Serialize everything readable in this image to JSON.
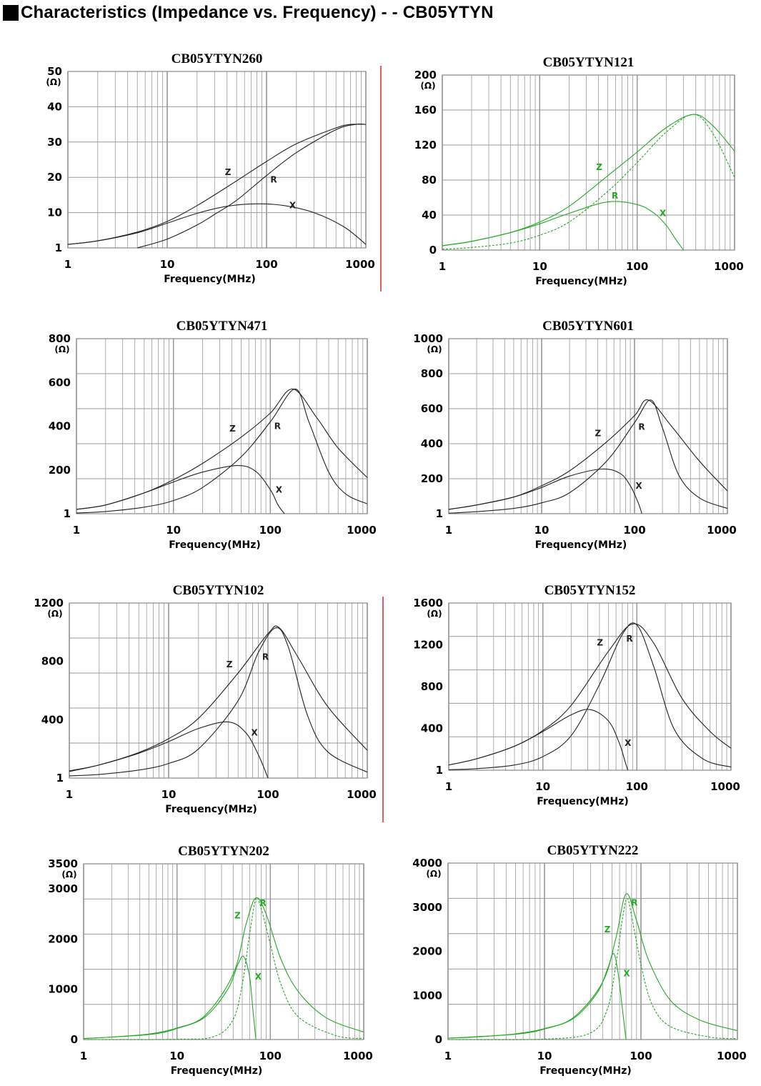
{
  "page": {
    "heading": "Characteristics (Impedance vs. Frequency) - - CB05YTYN",
    "heading_icon": "black-square"
  },
  "colors": {
    "black_curves": "#222222",
    "green_curves": "#22aa22",
    "grid": "#999999",
    "separator": "#e06060"
  },
  "chart_data": [
    {
      "type": "line",
      "title": "CB05YTYN260",
      "xlabel": "Frequency(MHz)",
      "unit": "(Ω)",
      "x_scale": "log",
      "xlim": [
        1,
        1000
      ],
      "ylim": [
        0,
        50
      ],
      "xticks": [
        "1",
        "10",
        "100",
        "1000"
      ],
      "yticks": [
        "1",
        "10",
        "20",
        "30",
        "40",
        "50"
      ],
      "grid": true,
      "color": "black",
      "series": [
        {
          "name": "Z",
          "style": "solid",
          "x": [
            1,
            2,
            5,
            10,
            20,
            50,
            100,
            200,
            500,
            700,
            1000
          ],
          "y": [
            1,
            2,
            4.5,
            7.5,
            12,
            19,
            24.5,
            29.5,
            34,
            35,
            35
          ]
        },
        {
          "name": "R",
          "style": "solid",
          "x": [
            5,
            10,
            20,
            30,
            50,
            100,
            200,
            500,
            800,
            1000
          ],
          "y": [
            0,
            2.5,
            6.5,
            9.5,
            13.5,
            20.5,
            27,
            33.5,
            35,
            35
          ]
        },
        {
          "name": "X",
          "style": "solid",
          "x": [
            1,
            2,
            5,
            10,
            20,
            40,
            80,
            150,
            300,
            600,
            1000
          ],
          "y": [
            1,
            2,
            4.3,
            7,
            9.8,
            11.8,
            12.5,
            12,
            10,
            6,
            1
          ]
        }
      ]
    },
    {
      "type": "line",
      "title": "CB05YTYN121",
      "xlabel": "Frequency(MHz)",
      "unit": "(Ω)",
      "x_scale": "log",
      "xlim": [
        1,
        1000
      ],
      "ylim": [
        0,
        200
      ],
      "xticks": [
        "1",
        "10",
        "100",
        "1000"
      ],
      "yticks": [
        "0",
        "40",
        "80",
        "120",
        "160",
        "200"
      ],
      "grid": true,
      "color": "green",
      "series": [
        {
          "name": "Z",
          "style": "solid",
          "x": [
            1,
            2,
            5,
            10,
            20,
            50,
            100,
            200,
            380,
            600,
            1000
          ],
          "y": [
            5,
            10,
            20,
            32,
            50,
            85,
            112,
            140,
            155,
            142,
            113
          ]
        },
        {
          "name": "R",
          "style": "dashed",
          "x": [
            1,
            2,
            5,
            10,
            20,
            50,
            100,
            200,
            380,
            600,
            1000
          ],
          "y": [
            1,
            3,
            8,
            17,
            32,
            67,
            100,
            135,
            155,
            133,
            83
          ]
        },
        {
          "name": "X",
          "style": "solid",
          "x": [
            1,
            2,
            5,
            10,
            20,
            50,
            100,
            150,
            200,
            250,
            300
          ],
          "y": [
            5,
            10,
            20,
            30,
            42,
            55,
            52,
            42,
            28,
            12,
            0
          ]
        }
      ]
    },
    {
      "type": "line",
      "title": "CB05YTYN471",
      "xlabel": "Frequency(MHz)",
      "unit": "(Ω)",
      "x_scale": "log",
      "xlim": [
        1,
        1000
      ],
      "ylim": [
        0,
        800
      ],
      "xticks": [
        "1",
        "10",
        "100",
        "1000"
      ],
      "yticks": [
        "1",
        "200",
        "400",
        "600",
        "800"
      ],
      "grid": true,
      "color": "black",
      "series": [
        {
          "name": "Z",
          "style": "solid",
          "x": [
            1,
            2,
            5,
            10,
            20,
            50,
            100,
            170,
            300,
            500,
            1000
          ],
          "y": [
            20,
            40,
            95,
            155,
            230,
            350,
            460,
            570,
            440,
            300,
            165
          ]
        },
        {
          "name": "R",
          "style": "solid",
          "x": [
            1,
            2,
            5,
            10,
            20,
            50,
            100,
            180,
            250,
            400,
            600,
            1000
          ],
          "y": [
            3,
            10,
            30,
            60,
            120,
            260,
            420,
            570,
            420,
            190,
            90,
            45
          ]
        },
        {
          "name": "X",
          "style": "solid",
          "x": [
            1,
            2,
            5,
            10,
            20,
            45,
            70,
            100,
            120,
            140
          ],
          "y": [
            20,
            40,
            95,
            145,
            190,
            220,
            195,
            110,
            40,
            0
          ]
        }
      ]
    },
    {
      "type": "line",
      "title": "CB05YTYN601",
      "xlabel": "Frequency(MHz)",
      "unit": "(Ω)",
      "x_scale": "log",
      "xlim": [
        1,
        1000
      ],
      "ylim": [
        0,
        1000
      ],
      "xticks": [
        "1",
        "10",
        "100",
        "1000"
      ],
      "yticks": [
        "1",
        "200",
        "400",
        "600",
        "800",
        "1000"
      ],
      "grid": true,
      "color": "black",
      "series": [
        {
          "name": "Z",
          "style": "solid",
          "x": [
            1,
            2,
            5,
            10,
            20,
            50,
            100,
            140,
            250,
            500,
            1000
          ],
          "y": [
            25,
            50,
            95,
            160,
            245,
            410,
            560,
            650,
            500,
            300,
            130
          ]
        },
        {
          "name": "R",
          "style": "solid",
          "x": [
            1,
            2,
            5,
            10,
            20,
            50,
            100,
            150,
            200,
            300,
            500,
            1000
          ],
          "y": [
            3,
            12,
            30,
            62,
            120,
            300,
            520,
            650,
            490,
            220,
            90,
            30
          ]
        },
        {
          "name": "X",
          "style": "solid",
          "x": [
            1,
            2,
            5,
            10,
            20,
            45,
            70,
            90,
            110,
            120
          ],
          "y": [
            25,
            50,
            95,
            150,
            215,
            255,
            230,
            160,
            60,
            0
          ]
        }
      ]
    },
    {
      "type": "line",
      "title": "CB05YTYN102",
      "xlabel": "Frequency(MHz)",
      "unit": "(Ω)",
      "x_scale": "log",
      "xlim": [
        1,
        1000
      ],
      "ylim": [
        0,
        1200
      ],
      "xticks": [
        "1",
        "10",
        "100",
        "1000"
      ],
      "yticks": [
        "1",
        "400",
        "800",
        "1200"
      ],
      "grid": true,
      "color": "black",
      "series": [
        {
          "name": "Z",
          "style": "solid",
          "x": [
            1,
            2,
            5,
            10,
            20,
            50,
            100,
            130,
            200,
            400,
            1000
          ],
          "y": [
            50,
            90,
            175,
            270,
            410,
            720,
            990,
            1030,
            830,
            490,
            190
          ]
        },
        {
          "name": "R",
          "style": "solid",
          "x": [
            1,
            2,
            5,
            10,
            20,
            50,
            80,
            120,
            160,
            250,
            400,
            1000
          ],
          "y": [
            15,
            25,
            55,
            100,
            200,
            530,
            860,
            1030,
            900,
            430,
            180,
            40
          ]
        },
        {
          "name": "X",
          "style": "solid",
          "x": [
            1,
            2,
            5,
            10,
            20,
            40,
            60,
            80,
            100
          ],
          "y": [
            45,
            90,
            170,
            250,
            340,
            385,
            310,
            160,
            0
          ]
        }
      ]
    },
    {
      "type": "line",
      "title": "CB05YTYN152",
      "xlabel": "Frequency(MHz)",
      "unit": "(Ω)",
      "x_scale": "log",
      "xlim": [
        1,
        1000
      ],
      "ylim": [
        0,
        1600
      ],
      "xticks": [
        "1",
        "10",
        "100",
        "1000"
      ],
      "yticks": [
        "1",
        "400",
        "800",
        "1200",
        "1600"
      ],
      "grid": true,
      "color": "black",
      "series": [
        {
          "name": "Z",
          "style": "solid",
          "x": [
            1,
            2,
            5,
            10,
            20,
            50,
            90,
            150,
            300,
            600,
            1000
          ],
          "y": [
            50,
            110,
            230,
            380,
            620,
            1140,
            1400,
            1220,
            690,
            370,
            210
          ]
        },
        {
          "name": "R",
          "style": "solid",
          "x": [
            1,
            2,
            5,
            10,
            20,
            40,
            70,
            100,
            150,
            250,
            500,
            1000
          ],
          "y": [
            5,
            15,
            50,
            130,
            330,
            820,
            1300,
            1390,
            1000,
            390,
            110,
            30
          ]
        },
        {
          "name": "X",
          "style": "solid",
          "x": [
            1,
            2,
            5,
            10,
            20,
            32,
            50,
            65,
            75,
            80
          ],
          "y": [
            50,
            110,
            230,
            370,
            530,
            580,
            470,
            260,
            80,
            0
          ]
        }
      ]
    },
    {
      "type": "line",
      "title": "CB05YTYN202",
      "xlabel": "Frequency(MHz)",
      "unit": "(Ω)",
      "x_scale": "log",
      "xlim": [
        1,
        1000
      ],
      "ylim": [
        0,
        3500
      ],
      "xticks": [
        "1",
        "10",
        "100",
        "1000"
      ],
      "yticks": [
        "0",
        "1000",
        "2000",
        "3000",
        "3500"
      ],
      "grid": true,
      "color": "green",
      "series": [
        {
          "name": "Z",
          "style": "solid",
          "x": [
            1,
            2,
            5,
            10,
            20,
            40,
            55,
            70,
            90,
            130,
            200,
            400,
            1000
          ],
          "y": [
            20,
            50,
            110,
            230,
            480,
            1300,
            2300,
            2820,
            2500,
            1600,
            950,
            430,
            150
          ]
        },
        {
          "name": "R",
          "style": "dashed",
          "x": [
            1,
            10,
            25,
            40,
            50,
            60,
            70,
            80,
            100,
            130,
            200,
            500,
            1000
          ],
          "y": [
            0,
            5,
            60,
            400,
            1100,
            2100,
            2800,
            2600,
            1900,
            1100,
            450,
            80,
            20
          ]
        },
        {
          "name": "X",
          "style": "solid",
          "x": [
            1,
            5,
            10,
            20,
            35,
            45,
            52,
            60,
            65,
            70
          ],
          "y": [
            20,
            100,
            220,
            450,
            1000,
            1500,
            1650,
            1250,
            600,
            0
          ]
        }
      ]
    },
    {
      "type": "line",
      "title": "CB05YTYN222",
      "xlabel": "Frequency(MHz)",
      "unit": "(Ω)",
      "x_scale": "log",
      "xlim": [
        1,
        1000
      ],
      "ylim": [
        0,
        4000
      ],
      "xticks": [
        "1",
        "10",
        "100",
        "1000"
      ],
      "yticks": [
        "0",
        "1000",
        "2000",
        "3000",
        "4000"
      ],
      "grid": true,
      "color": "green",
      "series": [
        {
          "name": "Z",
          "style": "solid",
          "x": [
            1,
            2,
            5,
            10,
            20,
            40,
            55,
            70,
            90,
            120,
            200,
            400,
            1000
          ],
          "y": [
            30,
            60,
            130,
            250,
            500,
            1300,
            2300,
            3300,
            2700,
            1800,
            900,
            450,
            200
          ]
        },
        {
          "name": "R",
          "style": "dashed",
          "x": [
            1,
            10,
            30,
            45,
            55,
            65,
            72,
            80,
            100,
            130,
            200,
            500,
            1000
          ],
          "y": [
            0,
            10,
            150,
            700,
            1700,
            2800,
            3200,
            2800,
            1700,
            800,
            300,
            60,
            20
          ]
        },
        {
          "name": "X",
          "style": "solid",
          "x": [
            1,
            5,
            10,
            20,
            35,
            45,
            52,
            58,
            65,
            70
          ],
          "y": [
            30,
            120,
            240,
            480,
            1050,
            1600,
            1950,
            1500,
            600,
            0
          ]
        }
      ]
    }
  ]
}
